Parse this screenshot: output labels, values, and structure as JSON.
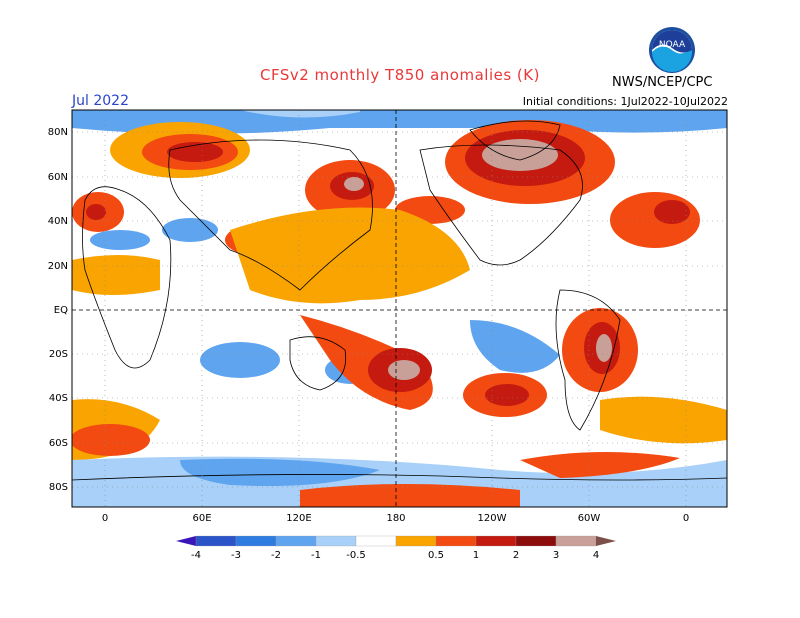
{
  "header": {
    "title": "CFSv2 monthly T850 anomalies (K)",
    "month": "Jul 2022",
    "initial_conditions": "Initial conditions: 1Jul2022-10Jul2022",
    "agency": "NWS/NCEP/CPC"
  },
  "logo": {
    "text": "NOAA",
    "icon": "noaa-logo"
  },
  "map": {
    "lat_labels": [
      "80N",
      "60N",
      "40N",
      "20N",
      "EQ",
      "20S",
      "40S",
      "60S",
      "80S"
    ],
    "lon_labels": [
      "0",
      "60E",
      "120E",
      "180",
      "120W",
      "60W",
      "0"
    ]
  },
  "colorbar": {
    "levels": [
      "-4",
      "-3",
      "-2",
      "-1",
      "-0.5",
      "0.5",
      "1",
      "2",
      "3",
      "4"
    ],
    "colors": [
      "#3a16b8",
      "#2a54c8",
      "#2e7ce0",
      "#5fa4ee",
      "#a8d0f8",
      "#ffffff",
      "#f9a400",
      "#f24a10",
      "#c41a10",
      "#8c0c0c",
      "#c8a098",
      "#7a5048"
    ]
  }
}
